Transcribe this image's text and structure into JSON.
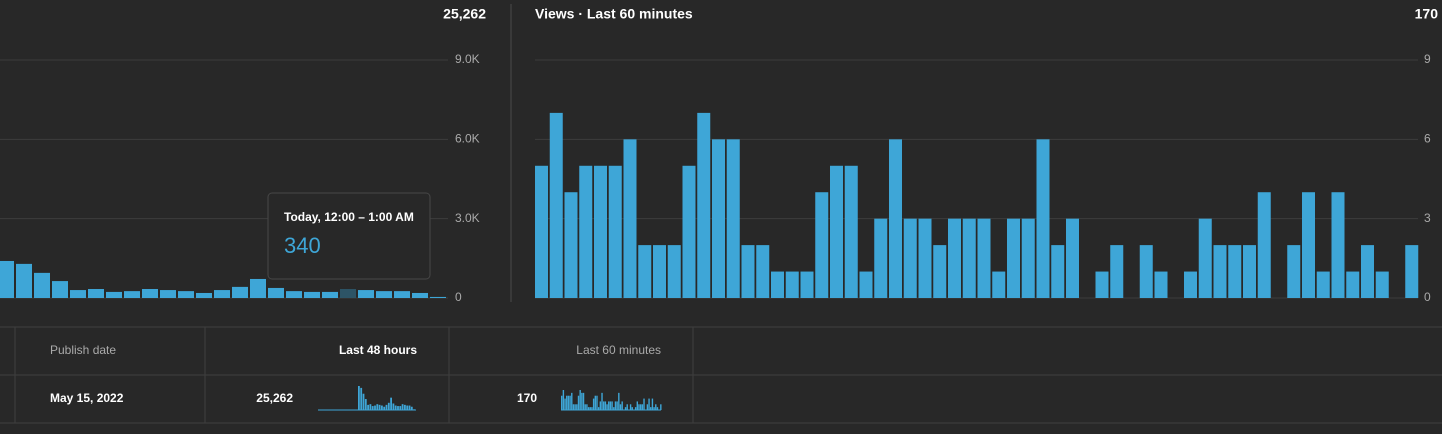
{
  "chart_data": [
    {
      "type": "bar",
      "total": "25,262",
      "color": "#3ea6d7",
      "highlight_color": "#2d5466",
      "highlighted_index": 19,
      "values": [
        1400,
        1290,
        950,
        640,
        300,
        340,
        230,
        260,
        340,
        300,
        260,
        190,
        300,
        420,
        720,
        380,
        260,
        230,
        230,
        340,
        300,
        260,
        260,
        190,
        40
      ],
      "ylim": [
        0,
        9000
      ],
      "yticks": [
        0,
        {
          "value": 3000,
          "label": "3.0K"
        },
        {
          "value": 6000,
          "label": "6.0K"
        },
        {
          "value": 9000,
          "label": "9.0K"
        }
      ],
      "grid": true,
      "tooltip": {
        "label": "Today, 12:00 – 1:00 AM",
        "value": 340
      }
    },
    {
      "type": "bar",
      "title": "Views · Last 60 minutes",
      "total": "170",
      "color": "#3ea6d7",
      "values": [
        5,
        7,
        4,
        5,
        5,
        5,
        6,
        2,
        2,
        2,
        5,
        7,
        6,
        6,
        2,
        2,
        1,
        1,
        1,
        4,
        5,
        5,
        1,
        3,
        6,
        3,
        3,
        2,
        3,
        3,
        3,
        1,
        3,
        3,
        6,
        2,
        3,
        0,
        1,
        2,
        0,
        2,
        1,
        0,
        1,
        3,
        2,
        2,
        2,
        4,
        0,
        2,
        4,
        1,
        4,
        1,
        2,
        1,
        0,
        2
      ],
      "ylim": [
        0,
        9
      ],
      "yticks": [
        0,
        3,
        6,
        9
      ],
      "grid": true
    }
  ],
  "table": {
    "headers": [
      "Publish date",
      "Last 48 hours",
      "Last 60 minutes"
    ],
    "rows": [
      [
        "May 15, 2022",
        "25,262",
        "170"
      ]
    ]
  }
}
